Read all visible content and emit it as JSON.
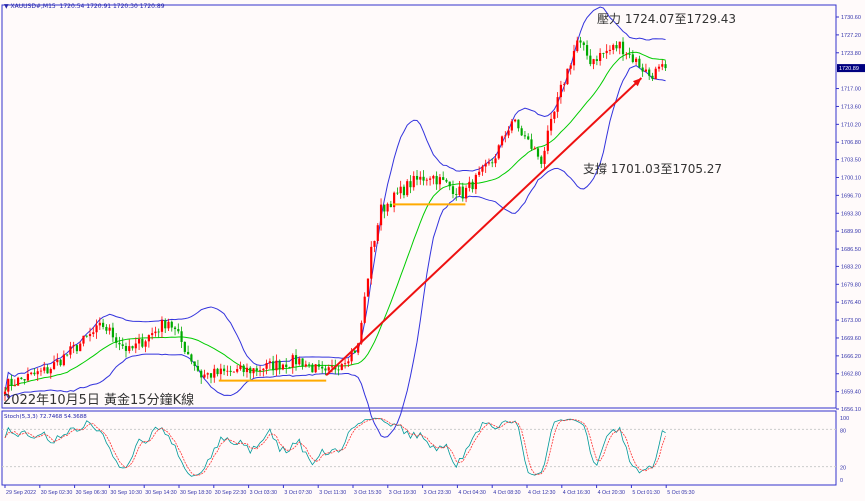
{
  "header": {
    "symbol": "XAUUSD#,M15",
    "ohlc": "1720.54 1720.91 1720.30 1720.89"
  },
  "annotations": {
    "resistance": "壓力 1724.07至1729.43",
    "support": "支撐 1701.03至1705.27",
    "title": "2022年10月5日 黃金15分鐘K線"
  },
  "stochastic": {
    "label": "Stoch(5,3,3) 72.7468 54.3688",
    "levels": [
      "100",
      "80",
      "20",
      "0"
    ]
  },
  "colors": {
    "bull": "#ff0000",
    "bear": "#00aa00",
    "bands": "#3333dd",
    "ma": "#00cc00",
    "arrow": "#ee1111",
    "levels": "#ffaa00",
    "axis": "#3333cc",
    "current": "#000080",
    "stoch_main": "#009999",
    "stoch_signal": "#ff3333"
  },
  "chart_data": {
    "type": "candlestick",
    "price_axis_ticks": [
      "1730.60",
      "1727.20",
      "1723.80",
      "1717.00",
      "1713.60",
      "1710.20",
      "1706.80",
      "1703.50",
      "1700.10",
      "1696.70",
      "1693.30",
      "1689.90",
      "1686.50",
      "1683.20",
      "1679.80",
      "1676.40",
      "1673.00",
      "1669.60",
      "1666.20",
      "1662.80",
      "1659.40",
      "1656.10"
    ],
    "current_price": "1720.89",
    "ylim": [
      1656.1,
      1730.6
    ],
    "time_axis_ticks": [
      "29 Sep 2022",
      "30 Sep 02:30",
      "30 Sep 06:30",
      "30 Sep 10:30",
      "30 Sep 14:30",
      "30 Sep 18:30",
      "30 Sep 22:30",
      "3 Oct 03:30",
      "3 Oct 07:30",
      "3 Oct 11:30",
      "3 Oct 15:30",
      "3 Oct 19:30",
      "3 Oct 23:30",
      "4 Oct 04:30",
      "4 Oct 08:30",
      "4 Oct 12:30",
      "4 Oct 16:30",
      "4 Oct 20:30",
      "5 Oct 01:30",
      "5 Oct 05:30"
    ],
    "approx_close_path": [
      [
        0,
        1660.6
      ],
      [
        13,
        1663.5
      ],
      [
        30,
        1672
      ],
      [
        38,
        1667
      ],
      [
        50,
        1673
      ],
      [
        60,
        1662.5
      ],
      [
        75,
        1663.5
      ],
      [
        90,
        1665.4
      ],
      [
        98,
        1662.5
      ],
      [
        108,
        1668
      ],
      [
        112,
        1686
      ],
      [
        115,
        1694
      ],
      [
        124,
        1699
      ],
      [
        130,
        1700.6
      ],
      [
        140,
        1697
      ],
      [
        149,
        1703
      ],
      [
        155,
        1711
      ],
      [
        164,
        1703.4
      ],
      [
        170,
        1716.7
      ],
      [
        175,
        1726
      ],
      [
        179,
        1722.4
      ],
      [
        188,
        1725.3
      ],
      [
        197,
        1719.6
      ],
      [
        202,
        1720.9
      ]
    ],
    "indicators": [
      "Bollinger Bands(20)",
      "Moving Average(20)",
      "Stochastic(5,3,3)"
    ],
    "trend_arrow": {
      "from": [
        "3 Oct 11:30",
        1662.5
      ],
      "to": [
        "5 Oct 01:30",
        1719
      ]
    },
    "support_lines": [
      {
        "price": 1661.5,
        "from": "30 Sep 22:30",
        "to": "3 Oct 11:30"
      },
      {
        "price": 1695,
        "from": "3 Oct 19:30",
        "to": "4 Oct 04:30"
      }
    ]
  }
}
